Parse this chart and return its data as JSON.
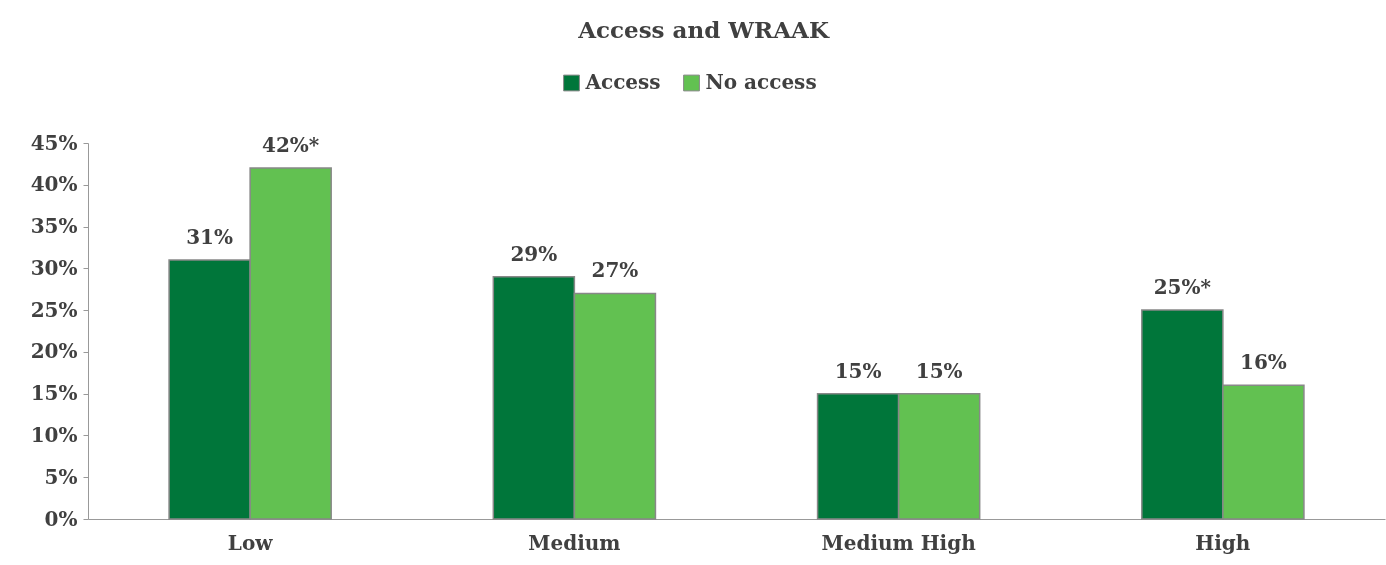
{
  "chart_data": {
    "type": "bar",
    "title": "Access and WRAAK",
    "categories": [
      "Low",
      "Medium",
      "Medium High",
      "High"
    ],
    "series": [
      {
        "name": "Access",
        "color": "#00763a",
        "values": [
          31,
          29,
          15,
          25
        ],
        "value_labels": [
          "31%",
          "29%",
          "15%",
          "25%*"
        ]
      },
      {
        "name": "No access",
        "color": "#62c151",
        "values": [
          42,
          27,
          15,
          16
        ],
        "value_labels": [
          "42%*",
          "27%",
          "15%",
          "16%"
        ]
      }
    ],
    "ylim": [
      0,
      45
    ],
    "yticks": [
      {
        "value": 0,
        "label": "0%"
      },
      {
        "value": 5,
        "label": "5%"
      },
      {
        "value": 10,
        "label": "10%"
      },
      {
        "value": 15,
        "label": "15%"
      },
      {
        "value": 20,
        "label": "20%"
      },
      {
        "value": 25,
        "label": "25%"
      },
      {
        "value": 30,
        "label": "30%"
      },
      {
        "value": 35,
        "label": "35%"
      },
      {
        "value": 40,
        "label": "40%"
      },
      {
        "value": 45,
        "label": "45%"
      }
    ],
    "legend": "top",
    "grid": false
  }
}
